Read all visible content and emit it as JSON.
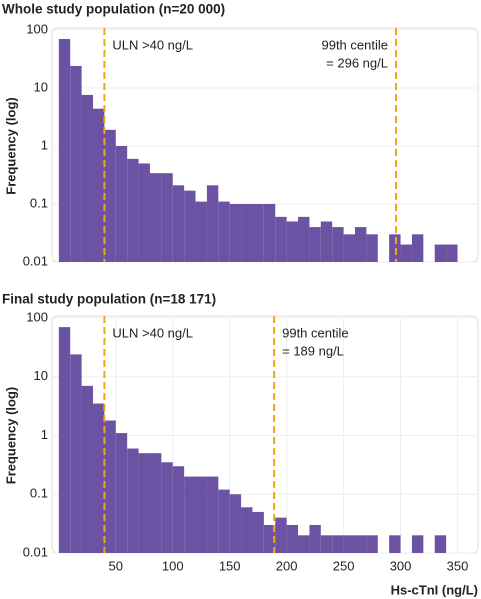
{
  "chart_data": [
    {
      "type": "histogram",
      "title": "Whole study population (n=20 000)",
      "y_label": "Frequency (log)",
      "bins": [
        0,
        10,
        20,
        30,
        40,
        50,
        60,
        70,
        80,
        90,
        100,
        110,
        120,
        130,
        140,
        150,
        160,
        170,
        180,
        190,
        200,
        210,
        220,
        230,
        240,
        250,
        260,
        270,
        280,
        290,
        300,
        310,
        320,
        330,
        340,
        350
      ],
      "values": [
        70,
        24,
        7.6,
        4.4,
        1.9,
        1.0,
        0.6,
        0.5,
        0.34,
        0.34,
        0.21,
        0.17,
        0.11,
        0.21,
        0.11,
        0.1,
        0.1,
        0.1,
        0.1,
        0.06,
        0.05,
        0.06,
        0.04,
        0.05,
        0.04,
        0.03,
        0.04,
        0.03,
        0,
        0.03,
        0.02,
        0.03,
        0,
        0.02,
        0.02
      ],
      "color": "#6b52a3",
      "log_scale": true,
      "xlim": [
        -6,
        368
      ],
      "ylim": [
        0.01,
        100
      ],
      "yticks": [
        100,
        10,
        1,
        0.1,
        0.01
      ],
      "vlines": [
        {
          "x": 40,
          "label": [
            "ULN >40 ng/L"
          ]
        },
        {
          "x": 296,
          "label": [
            "99th centile",
            "= 296 ng/L"
          ]
        }
      ],
      "vline_color": "#f2a516"
    },
    {
      "type": "histogram",
      "title": "Final study population (n=18 171)",
      "y_label": "Frequency (log)",
      "x_label": "Hs-cTnI (ng/L)",
      "bins": [
        0,
        10,
        20,
        30,
        40,
        50,
        60,
        70,
        80,
        90,
        100,
        110,
        120,
        130,
        140,
        150,
        160,
        170,
        180,
        190,
        200,
        210,
        220,
        230,
        240,
        250,
        260,
        270,
        280,
        290,
        300,
        310,
        320,
        330,
        340,
        350
      ],
      "values": [
        70,
        24,
        7,
        3.5,
        1.8,
        1.1,
        0.6,
        0.5,
        0.5,
        0.35,
        0.3,
        0.2,
        0.2,
        0.2,
        0.12,
        0.1,
        0.06,
        0.05,
        0.03,
        0.04,
        0.03,
        0.02,
        0.03,
        0.02,
        0.02,
        0.02,
        0.02,
        0.02,
        0,
        0.02,
        0,
        0.02,
        0,
        0.02,
        0
      ],
      "color": "#6b52a3",
      "log_scale": true,
      "xlim": [
        -6,
        368
      ],
      "ylim": [
        0.01,
        100
      ],
      "yticks": [
        100,
        10,
        1,
        0.1,
        0.01
      ],
      "xticks": [
        50,
        100,
        150,
        200,
        250,
        300,
        350
      ],
      "vlines": [
        {
          "x": 40,
          "label": [
            "ULN >40 ng/L"
          ]
        },
        {
          "x": 189,
          "label": [
            "99th centile",
            "= 189 ng/L"
          ]
        }
      ],
      "vline_color": "#f2a516"
    }
  ]
}
